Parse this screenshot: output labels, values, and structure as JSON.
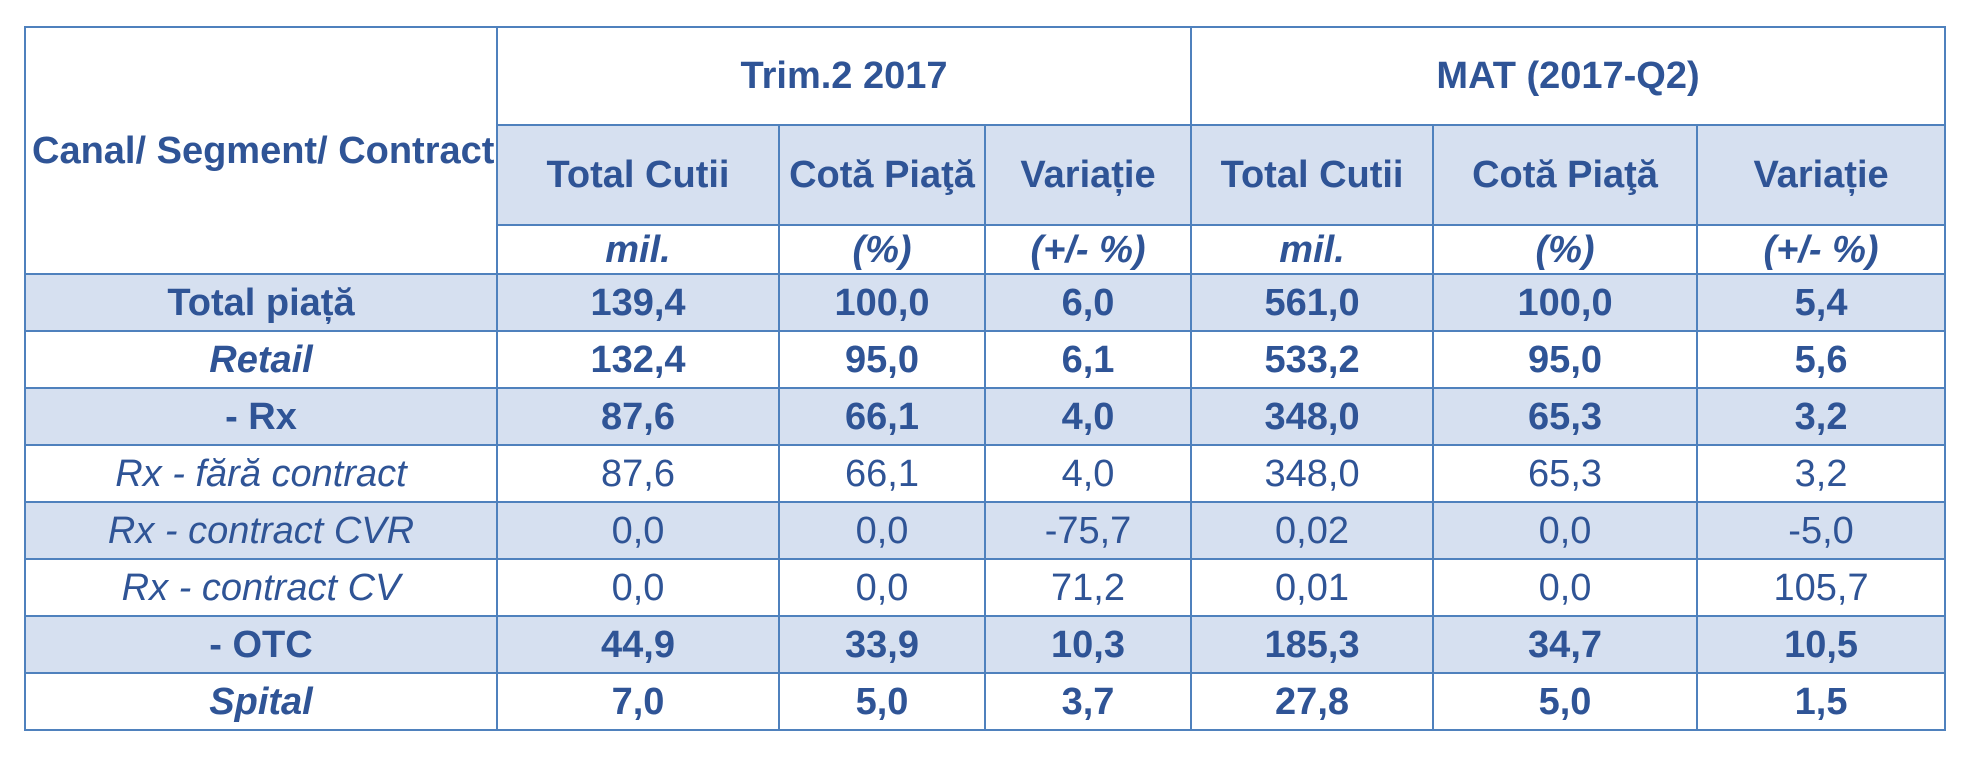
{
  "header": {
    "corner": "Canal/ Segment/ Contract",
    "group1": "Trim.2 2017",
    "group2": "MAT (2017-Q2)",
    "col_total": "Total Cutii",
    "col_cota1": "Cotă Piaţă",
    "col_var1": "Variație",
    "col_total2": "Total Cutii",
    "col_cota2": "Cotă Piaţă",
    "col_var2": "Variație",
    "unit_mil": "mil.",
    "unit_pct": "(%)",
    "unit_var": "(+/- %)",
    "unit_mil2": "mil.",
    "unit_pct2": "(%)",
    "unit_var2": "(+/- %)"
  },
  "rows": [
    {
      "label": "Total piață",
      "v": [
        "139,4",
        "100,0",
        "6,0",
        "561,0",
        "100,0",
        "5,4"
      ]
    },
    {
      "label": "Retail",
      "v": [
        "132,4",
        "95,0",
        "6,1",
        "533,2",
        "95,0",
        "5,6"
      ]
    },
    {
      "label": "- Rx",
      "v": [
        "87,6",
        "66,1",
        "4,0",
        "348,0",
        "65,3",
        "3,2"
      ]
    },
    {
      "label": "Rx - fără contract",
      "v": [
        "87,6",
        "66,1",
        "4,0",
        "348,0",
        "65,3",
        "3,2"
      ]
    },
    {
      "label": "Rx - contract CVR",
      "v": [
        "0,0",
        "0,0",
        "-75,7",
        "0,02",
        "0,0",
        "-5,0"
      ]
    },
    {
      "label": "Rx - contract CV",
      "v": [
        "0,0",
        "0,0",
        "71,2",
        "0,01",
        "0,0",
        "105,7"
      ]
    },
    {
      "label": "- OTC",
      "v": [
        "44,9",
        "33,9",
        "10,3",
        "185,3",
        "34,7",
        "10,5"
      ]
    },
    {
      "label": "Spital",
      "v": [
        "7,0",
        "5,0",
        "3,7",
        "27,8",
        "5,0",
        "1,5"
      ]
    }
  ]
}
